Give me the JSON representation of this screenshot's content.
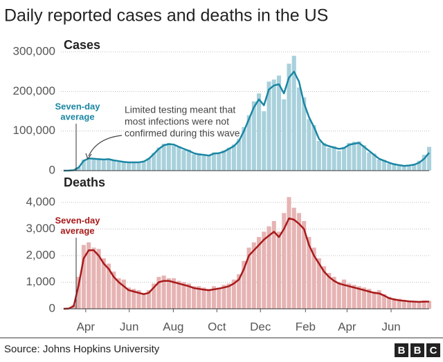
{
  "title": "Daily reported cases and deaths in the US",
  "source": "Source: Johns Hopkins University",
  "logo": [
    "B",
    "B",
    "C"
  ],
  "chart_data": [
    {
      "type": "bar",
      "subtitle": "Cases",
      "annotation_label": [
        "Seven-day",
        "average"
      ],
      "annotation_note": [
        "Limited testing meant that",
        "most infections were not",
        "confirmed during this wave"
      ],
      "x": [
        0,
        1,
        2,
        3,
        4,
        5,
        6,
        7,
        8,
        9,
        10,
        11,
        12,
        13,
        14,
        15,
        16,
        17,
        18,
        19,
        20,
        21,
        22,
        23,
        24,
        25,
        26,
        27,
        28,
        29,
        30,
        31,
        32,
        33,
        34,
        35,
        36,
        37,
        38,
        39,
        40,
        41,
        42,
        43,
        44,
        45,
        46,
        47,
        48,
        49,
        50,
        51,
        52,
        53,
        54,
        55,
        56,
        57,
        58,
        59,
        60,
        61,
        62,
        63,
        64,
        65,
        66,
        67,
        68,
        69,
        70,
        71,
        72,
        73
      ],
      "xlim": [
        0,
        73
      ],
      "ylim": [
        0,
        300000
      ],
      "yticks": [
        {
          "value": 0,
          "label": "0"
        },
        {
          "value": 100000,
          "label": "100,000"
        },
        {
          "value": 200000,
          "label": "200,000"
        },
        {
          "value": 300000,
          "label": "300,000"
        }
      ],
      "grid": true,
      "series": [
        {
          "type": "bar",
          "color": "#a9d1dc",
          "values": [
            0,
            150,
            1500,
            9000,
            28000,
            33000,
            29000,
            31000,
            26000,
            30000,
            27000,
            22000,
            23000,
            20000,
            22000,
            19000,
            25000,
            32000,
            45000,
            58000,
            68000,
            70000,
            63000,
            62000,
            52000,
            53000,
            41000,
            44000,
            38000,
            40000,
            46000,
            42000,
            51000,
            58000,
            66000,
            80000,
            110000,
            140000,
            175000,
            195000,
            150000,
            225000,
            230000,
            240000,
            180000,
            270000,
            290000,
            210000,
            185000,
            130000,
            115000,
            75000,
            70000,
            58000,
            62000,
            50000,
            60000,
            70000,
            73000,
            74000,
            64000,
            46000,
            43000,
            28000,
            27000,
            18000,
            19000,
            12000,
            14000,
            11000,
            17000,
            25000,
            40000,
            60000
          ]
        },
        {
          "type": "line",
          "color": "#1a86a3",
          "values": [
            0,
            100,
            1000,
            8000,
            25000,
            31000,
            30000,
            29000,
            28000,
            29000,
            26000,
            24000,
            22000,
            21000,
            21000,
            21000,
            23000,
            30000,
            42000,
            55000,
            64000,
            67000,
            66000,
            60000,
            55000,
            50000,
            44000,
            41000,
            40000,
            38000,
            43000,
            44000,
            48000,
            55000,
            62000,
            75000,
            100000,
            130000,
            160000,
            180000,
            165000,
            205000,
            215000,
            218000,
            195000,
            235000,
            250000,
            225000,
            170000,
            135000,
            110000,
            80000,
            66000,
            62000,
            58000,
            55000,
            57000,
            65000,
            68000,
            70000,
            60000,
            50000,
            40000,
            30000,
            25000,
            20000,
            16000,
            14000,
            12000,
            13000,
            15000,
            20000,
            30000,
            45000
          ]
        }
      ]
    },
    {
      "type": "bar",
      "subtitle": "Deaths",
      "annotation_label": [
        "Seven-day",
        "average"
      ],
      "x": [
        0,
        1,
        2,
        3,
        4,
        5,
        6,
        7,
        8,
        9,
        10,
        11,
        12,
        13,
        14,
        15,
        16,
        17,
        18,
        19,
        20,
        21,
        22,
        23,
        24,
        25,
        26,
        27,
        28,
        29,
        30,
        31,
        32,
        33,
        34,
        35,
        36,
        37,
        38,
        39,
        40,
        41,
        42,
        43,
        44,
        45,
        46,
        47,
        48,
        49,
        50,
        51,
        52,
        53,
        54,
        55,
        56,
        57,
        58,
        59,
        60,
        61,
        62,
        63,
        64,
        65,
        66,
        67,
        68,
        69,
        70,
        71,
        72,
        73
      ],
      "xlim": [
        0,
        73
      ],
      "xticks": [
        {
          "value": 4.4,
          "label": "Apr"
        },
        {
          "value": 13.1,
          "label": "Jun"
        },
        {
          "value": 21.9,
          "label": "Aug"
        },
        {
          "value": 30.6,
          "label": "Oct"
        },
        {
          "value": 39.3,
          "label": "Dec"
        },
        {
          "value": 48.3,
          "label": "Feb"
        },
        {
          "value": 56.6,
          "label": "Apr"
        },
        {
          "value": 65.4,
          "label": "Jun"
        }
      ],
      "ylim": [
        0,
        4000
      ],
      "yticks": [
        {
          "value": 0,
          "label": "0"
        },
        {
          "value": 1000,
          "label": "1,000"
        },
        {
          "value": 2000,
          "label": "2,000"
        },
        {
          "value": 3000,
          "label": "3,000"
        },
        {
          "value": 4000,
          "label": "4,000"
        }
      ],
      "grid": true,
      "series": [
        {
          "type": "bar",
          "color": "#e6b3b3",
          "values": [
            0,
            15,
            150,
            1200,
            2400,
            2500,
            2300,
            2250,
            1900,
            1700,
            1400,
            1150,
            1100,
            800,
            750,
            700,
            600,
            700,
            950,
            1200,
            1250,
            1150,
            1150,
            1050,
            1000,
            950,
            850,
            850,
            800,
            750,
            850,
            800,
            900,
            950,
            1100,
            1300,
            1800,
            2300,
            2500,
            2700,
            2900,
            3100,
            3300,
            2900,
            3600,
            4200,
            3800,
            3600,
            3300,
            2700,
            2300,
            1900,
            1600,
            1350,
            1200,
            1000,
            1100,
            950,
            900,
            850,
            800,
            750,
            650,
            700,
            550,
            450,
            400,
            380,
            330,
            310,
            300,
            290,
            310,
            300
          ]
        },
        {
          "type": "line",
          "color": "#a8191a",
          "values": [
            0,
            10,
            100,
            900,
            1900,
            2200,
            2200,
            2000,
            1700,
            1500,
            1200,
            1000,
            850,
            700,
            650,
            600,
            550,
            600,
            800,
            1000,
            1050,
            1050,
            1000,
            950,
            900,
            850,
            780,
            750,
            720,
            700,
            730,
            760,
            800,
            850,
            950,
            1100,
            1500,
            2000,
            2200,
            2400,
            2600,
            2750,
            2900,
            2700,
            3000,
            3400,
            3350,
            3200,
            3000,
            2400,
            2000,
            1700,
            1400,
            1200,
            1050,
            950,
            900,
            850,
            800,
            750,
            700,
            650,
            600,
            580,
            500,
            400,
            350,
            320,
            300,
            280,
            270,
            260,
            270,
            270
          ]
        }
      ]
    }
  ]
}
